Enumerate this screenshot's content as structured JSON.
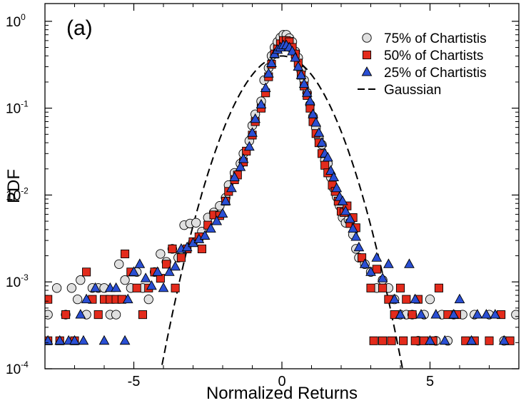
{
  "chart_data": {
    "type": "scatter",
    "panel_label": "(a)",
    "xlabel": "Normalized Returns",
    "ylabel": "PDF",
    "xlim": [
      -8,
      8
    ],
    "ylim": [
      0.0001,
      1.6
    ],
    "yscale": "log",
    "x_ticks": [
      {
        "value": -5,
        "label": "-5"
      },
      {
        "value": 0,
        "label": "0"
      },
      {
        "value": 5,
        "label": "5"
      }
    ],
    "y_ticks": [
      {
        "value": 0.0001,
        "base": "10",
        "exp": "-4"
      },
      {
        "value": 0.001,
        "base": "10",
        "exp": "-3"
      },
      {
        "value": 0.01,
        "base": "10",
        "exp": "-2"
      },
      {
        "value": 0.1,
        "base": "10",
        "exp": "-1"
      },
      {
        "value": 1,
        "base": "10",
        "exp": "0"
      }
    ],
    "series": [
      {
        "name": "75% of Chartistis",
        "marker": "circle",
        "color": "#e0e0e0",
        "points": [
          [
            -7.9,
            0.00042
          ],
          [
            -7.6,
            0.00085
          ],
          [
            -7.3,
            0.00042
          ],
          [
            -7.1,
            0.00085
          ],
          [
            -6.9,
            0.00063
          ],
          [
            -6.8,
            0.00105
          ],
          [
            -6.6,
            0.00042
          ],
          [
            -6.4,
            0.00085
          ],
          [
            -6.2,
            0.00085
          ],
          [
            -6.0,
            0.00085
          ],
          [
            -5.8,
            0.00042
          ],
          [
            -5.6,
            0.00042
          ],
          [
            -5.5,
            0.0016
          ],
          [
            -5.3,
            0.00105
          ],
          [
            -5.1,
            0.00085
          ],
          [
            -4.9,
            0.0013
          ],
          [
            -4.7,
            0.00085
          ],
          [
            -4.5,
            0.00063
          ],
          [
            -4.3,
            0.0013
          ],
          [
            -4.1,
            0.0021
          ],
          [
            -3.9,
            0.0017
          ],
          [
            -3.7,
            0.0024
          ],
          [
            -3.5,
            0.0019
          ],
          [
            -3.3,
            0.0045
          ],
          [
            -3.1,
            0.0047
          ],
          [
            -2.9,
            0.0048
          ],
          [
            -2.7,
            0.0038
          ],
          [
            -2.5,
            0.0055
          ],
          [
            -2.3,
            0.0063
          ],
          [
            -2.1,
            0.0075
          ],
          [
            -1.9,
            0.0093
          ],
          [
            -1.8,
            0.013
          ],
          [
            -1.6,
            0.018
          ],
          [
            -1.4,
            0.023
          ],
          [
            -1.3,
            0.03
          ],
          [
            -1.1,
            0.042
          ],
          [
            -1.0,
            0.063
          ],
          [
            -0.9,
            0.085
          ],
          [
            -0.7,
            0.12
          ],
          [
            -0.6,
            0.21
          ],
          [
            -0.45,
            0.29
          ],
          [
            -0.35,
            0.4
          ],
          [
            -0.25,
            0.5
          ],
          [
            -0.15,
            0.58
          ],
          [
            -0.05,
            0.65
          ],
          [
            0.05,
            0.7
          ],
          [
            0.15,
            0.7
          ],
          [
            0.25,
            0.64
          ],
          [
            0.35,
            0.58
          ],
          [
            0.45,
            0.45
          ],
          [
            0.55,
            0.38
          ],
          [
            0.65,
            0.27
          ],
          [
            0.75,
            0.21
          ],
          [
            0.85,
            0.15
          ],
          [
            0.95,
            0.11
          ],
          [
            1.05,
            0.08
          ],
          [
            1.15,
            0.059
          ],
          [
            1.25,
            0.045
          ],
          [
            1.35,
            0.038
          ],
          [
            1.45,
            0.025
          ],
          [
            1.55,
            0.023
          ],
          [
            1.65,
            0.016
          ],
          [
            1.75,
            0.012
          ],
          [
            1.85,
            0.0095
          ],
          [
            1.95,
            0.0075
          ],
          [
            2.05,
            0.0055
          ],
          [
            2.15,
            0.0048
          ],
          [
            2.25,
            0.0052
          ],
          [
            2.4,
            0.0035
          ],
          [
            2.5,
            0.0024
          ],
          [
            2.6,
            0.0019
          ],
          [
            2.8,
            0.0016
          ],
          [
            3.0,
            0.0013
          ],
          [
            3.2,
            0.00085
          ],
          [
            3.4,
            0.00105
          ],
          [
            3.6,
            0.00085
          ],
          [
            3.8,
            0.00063
          ],
          [
            4.0,
            0.00042
          ],
          [
            4.2,
            0.00042
          ],
          [
            4.4,
            0.00042
          ],
          [
            4.6,
            0.00021
          ],
          [
            4.8,
            0.00042
          ],
          [
            5.0,
            0.00063
          ],
          [
            5.2,
            0.00021
          ],
          [
            5.4,
            0.00042
          ],
          [
            5.6,
            0.00021
          ],
          [
            5.8,
            0.00042
          ],
          [
            6.1,
            0.00042
          ],
          [
            6.5,
            0.00042
          ],
          [
            7.0,
            0.00042
          ],
          [
            7.5,
            0.00021
          ],
          [
            7.9,
            0.00042
          ]
        ]
      },
      {
        "name": "50% of Chartists",
        "marker": "square",
        "color": "#e32b1c",
        "points": [
          [
            -7.9,
            0.00021
          ],
          [
            -7.5,
            0.00021
          ],
          [
            -7.9,
            0.00063
          ],
          [
            -7.3,
            0.00042
          ],
          [
            -6.6,
            0.0013
          ],
          [
            -6.4,
            0.00063
          ],
          [
            -6.2,
            0.00042
          ],
          [
            -6.0,
            0.00063
          ],
          [
            -5.8,
            0.00063
          ],
          [
            -5.6,
            0.00063
          ],
          [
            -5.4,
            0.00063
          ],
          [
            -5.3,
            0.0021
          ],
          [
            -5.1,
            0.0013
          ],
          [
            -4.9,
            0.00085
          ],
          [
            -4.7,
            0.00042
          ],
          [
            -4.5,
            0.00085
          ],
          [
            -4.3,
            0.0013
          ],
          [
            -4.1,
            0.0011
          ],
          [
            -3.9,
            0.0016
          ],
          [
            -3.7,
            0.0024
          ],
          [
            -3.6,
            0.00085
          ],
          [
            -3.4,
            0.0019
          ],
          [
            -3.2,
            0.0024
          ],
          [
            -3.0,
            0.0029
          ],
          [
            -2.8,
            0.0033
          ],
          [
            -2.7,
            0.0024
          ],
          [
            -2.5,
            0.0045
          ],
          [
            -2.3,
            0.0059
          ],
          [
            -2.1,
            0.0058
          ],
          [
            -1.9,
            0.0085
          ],
          [
            -1.8,
            0.011
          ],
          [
            -1.6,
            0.015
          ],
          [
            -1.5,
            0.017
          ],
          [
            -1.3,
            0.024
          ],
          [
            -1.2,
            0.032
          ],
          [
            -1.0,
            0.049
          ],
          [
            -0.9,
            0.07
          ],
          [
            -0.7,
            0.1
          ],
          [
            -0.55,
            0.15
          ],
          [
            -0.45,
            0.23
          ],
          [
            -0.35,
            0.32
          ],
          [
            -0.25,
            0.42
          ],
          [
            -0.15,
            0.48
          ],
          [
            -0.05,
            0.55
          ],
          [
            0.05,
            0.6
          ],
          [
            0.15,
            0.6
          ],
          [
            0.25,
            0.58
          ],
          [
            0.35,
            0.5
          ],
          [
            0.45,
            0.42
          ],
          [
            0.55,
            0.33
          ],
          [
            0.65,
            0.24
          ],
          [
            0.75,
            0.18
          ],
          [
            0.85,
            0.14
          ],
          [
            0.95,
            0.1
          ],
          [
            1.05,
            0.07
          ],
          [
            1.15,
            0.051
          ],
          [
            1.25,
            0.04
          ],
          [
            1.35,
            0.03
          ],
          [
            1.45,
            0.022
          ],
          [
            1.55,
            0.018
          ],
          [
            1.7,
            0.013
          ],
          [
            1.8,
            0.011
          ],
          [
            1.9,
            0.0085
          ],
          [
            2.0,
            0.0065
          ],
          [
            2.1,
            0.0063
          ],
          [
            2.2,
            0.0075
          ],
          [
            2.3,
            0.0047
          ],
          [
            2.4,
            0.0055
          ],
          [
            2.5,
            0.0042
          ],
          [
            2.7,
            0.0019
          ],
          [
            3.0,
            0.00085
          ],
          [
            3.2,
            0.0014
          ],
          [
            3.4,
            0.00085
          ],
          [
            3.6,
            0.00063
          ],
          [
            3.8,
            0.00042
          ],
          [
            4.0,
            0.00085
          ],
          [
            4.2,
            0.00063
          ],
          [
            4.4,
            0.00042
          ],
          [
            4.6,
            0.00063
          ],
          [
            4.8,
            0.00021
          ],
          [
            5.1,
            0.00021
          ],
          [
            5.3,
            0.00085
          ],
          [
            5.6,
            0.00042
          ],
          [
            5.9,
            0.00042
          ],
          [
            6.2,
            0.00021
          ],
          [
            6.5,
            0.00021
          ],
          [
            7.0,
            0.00021
          ],
          [
            7.4,
            0.00042
          ],
          [
            7.7,
            0.00021
          ],
          [
            3.1,
            0.00021
          ],
          [
            3.4,
            0.00021
          ],
          [
            3.7,
            0.00021
          ],
          [
            4.1,
            0.00021
          ],
          [
            4.5,
            0.00021
          ],
          [
            -7.0,
            0.00021
          ]
        ]
      },
      {
        "name": "25% of Chartistis",
        "marker": "triangle",
        "color": "#2a4fd4",
        "points": [
          [
            -7.9,
            0.00021
          ],
          [
            -7.2,
            0.00021
          ],
          [
            -7.0,
            0.00021
          ],
          [
            -6.7,
            0.00021
          ],
          [
            -7.5,
            0.00021
          ],
          [
            -6.8,
            0.00042
          ],
          [
            -6.6,
            0.00063
          ],
          [
            -6.3,
            0.00085
          ],
          [
            -6.0,
            0.00021
          ],
          [
            -5.8,
            0.00085
          ],
          [
            -5.6,
            0.00085
          ],
          [
            -5.3,
            0.00021
          ],
          [
            -5.2,
            0.00063
          ],
          [
            -5.0,
            0.0013
          ],
          [
            -4.8,
            0.0016
          ],
          [
            -4.6,
            0.0011
          ],
          [
            -4.4,
            0.0009
          ],
          [
            -4.2,
            0.0013
          ],
          [
            -4.0,
            0.00085
          ],
          [
            -3.8,
            0.0013
          ],
          [
            -3.6,
            0.0015
          ],
          [
            -3.4,
            0.0024
          ],
          [
            -3.2,
            0.0025
          ],
          [
            -3.0,
            0.0028
          ],
          [
            -2.8,
            0.0031
          ],
          [
            -2.6,
            0.0034
          ],
          [
            -2.4,
            0.0041
          ],
          [
            -2.2,
            0.005
          ],
          [
            -2.0,
            0.0061
          ],
          [
            -1.9,
            0.0085
          ],
          [
            -1.7,
            0.012
          ],
          [
            -1.6,
            0.016
          ],
          [
            -1.4,
            0.021
          ],
          [
            -1.3,
            0.026
          ],
          [
            -1.1,
            0.036
          ],
          [
            -1.0,
            0.052
          ],
          [
            -0.9,
            0.075
          ],
          [
            -0.7,
            0.11
          ],
          [
            -0.55,
            0.17
          ],
          [
            -0.45,
            0.25
          ],
          [
            -0.35,
            0.33
          ],
          [
            -0.25,
            0.42
          ],
          [
            -0.15,
            0.47
          ],
          [
            -0.05,
            0.5
          ],
          [
            0.05,
            0.53
          ],
          [
            0.15,
            0.53
          ],
          [
            0.25,
            0.5
          ],
          [
            0.35,
            0.45
          ],
          [
            0.45,
            0.38
          ],
          [
            0.55,
            0.3
          ],
          [
            0.65,
            0.24
          ],
          [
            0.75,
            0.19
          ],
          [
            0.85,
            0.15
          ],
          [
            0.95,
            0.12
          ],
          [
            1.05,
            0.085
          ],
          [
            1.15,
            0.068
          ],
          [
            1.25,
            0.052
          ],
          [
            1.35,
            0.04
          ],
          [
            1.45,
            0.03
          ],
          [
            1.55,
            0.027
          ],
          [
            1.65,
            0.019
          ],
          [
            1.75,
            0.016
          ],
          [
            1.85,
            0.012
          ],
          [
            1.95,
            0.0095
          ],
          [
            2.05,
            0.0085
          ],
          [
            2.15,
            0.0065
          ],
          [
            2.3,
            0.0053
          ],
          [
            2.4,
            0.0041
          ],
          [
            2.5,
            0.0033
          ],
          [
            2.6,
            0.0025
          ],
          [
            2.8,
            0.0016
          ],
          [
            3.0,
            0.0013
          ],
          [
            3.2,
            0.0019
          ],
          [
            3.4,
            0.0011
          ],
          [
            3.6,
            0.0016
          ],
          [
            3.8,
            0.00063
          ],
          [
            4.0,
            0.00042
          ],
          [
            4.3,
            0.0016
          ],
          [
            4.5,
            0.00063
          ],
          [
            4.7,
            0.00042
          ],
          [
            5.0,
            0.00021
          ],
          [
            5.2,
            0.00042
          ],
          [
            5.5,
            0.00021
          ],
          [
            5.8,
            0.00042
          ],
          [
            6.0,
            0.00063
          ],
          [
            6.4,
            0.00021
          ],
          [
            6.6,
            0.00042
          ],
          [
            6.9,
            0.00042
          ],
          [
            7.2,
            0.00042
          ],
          [
            7.5,
            0.00021
          ]
        ]
      },
      {
        "name": "Gaussian",
        "marker": "line",
        "style": "dashed",
        "color": "#000000",
        "mean": 0,
        "std": 1
      }
    ],
    "legend": {
      "position": "top-right"
    }
  }
}
